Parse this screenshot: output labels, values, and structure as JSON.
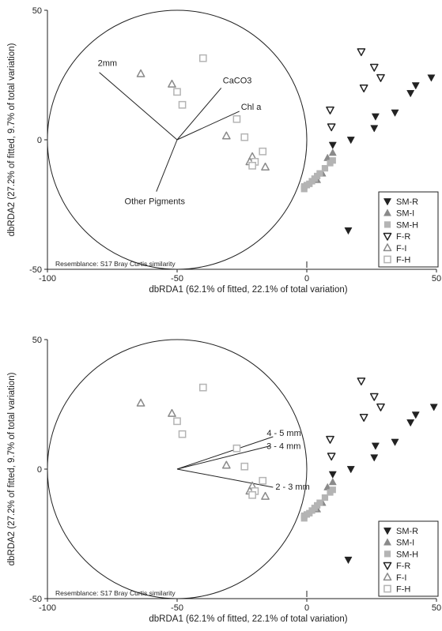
{
  "chart_data": [
    {
      "type": "scatter",
      "title": "",
      "xlabel": "dbRDA1 (62.1% of fitted, 22.1% of total variation)",
      "ylabel": "dbRDA2 (27.2% of fitted, 9.7% of total variation)",
      "xlim": [
        -100,
        50
      ],
      "ylim": [
        -50,
        50
      ],
      "xticks": [
        -100,
        -50,
        0,
        50
      ],
      "yticks": [
        -50,
        0,
        50
      ],
      "grid": false,
      "legend_position": "bottom-right",
      "annotation": "Resemblance: S17 Bray Curtis similarity",
      "circle": {
        "center": [
          -50,
          0
        ],
        "radius": 50
      },
      "vectors": [
        {
          "label": "2mm",
          "end": [
            -80,
            26
          ]
        },
        {
          "label": "CaCO3",
          "end": [
            -33,
            20
          ]
        },
        {
          "label": "Chl a",
          "end": [
            -26,
            11
          ]
        },
        {
          "label": "Other Pigments",
          "end": [
            -58,
            -20
          ]
        }
      ],
      "series": [
        {
          "name": "SM-R",
          "marker": "triangle-down-filled",
          "points": [
            [
              48,
              24
            ],
            [
              42,
              21
            ],
            [
              40,
              18
            ],
            [
              34,
              10.5
            ],
            [
              26.5,
              9
            ],
            [
              26,
              4.5
            ],
            [
              17,
              0
            ],
            [
              10,
              -2
            ],
            [
              16,
              -35
            ]
          ]
        },
        {
          "name": "SM-I",
          "marker": "triangle-up-filled",
          "points": [
            [
              10,
              -5
            ],
            [
              8,
              -7
            ],
            [
              6,
              -13
            ],
            [
              4,
              -15.5
            ]
          ]
        },
        {
          "name": "SM-H",
          "marker": "square-filled",
          "points": [
            [
              10,
              -8
            ],
            [
              9,
              -9
            ],
            [
              7,
              -11
            ],
            [
              5,
              -13
            ],
            [
              4,
              -14
            ],
            [
              3,
              -15
            ],
            [
              2,
              -16
            ],
            [
              1,
              -17
            ],
            [
              0,
              -17.5
            ],
            [
              -1,
              -18
            ],
            [
              -1,
              -19
            ]
          ]
        },
        {
          "name": "F-R",
          "marker": "triangle-down-open",
          "points": [
            [
              21,
              34
            ],
            [
              26,
              28
            ],
            [
              28.5,
              24
            ],
            [
              22,
              20
            ],
            [
              9,
              11.5
            ],
            [
              9.5,
              5
            ]
          ]
        },
        {
          "name": "F-I",
          "marker": "triangle-up-open",
          "points": [
            [
              -64,
              25.5
            ],
            [
              -52,
              21.5
            ],
            [
              -31,
              1.5
            ],
            [
              -21,
              -6.5
            ],
            [
              -22,
              -8.5
            ],
            [
              -16,
              -10.5
            ]
          ]
        },
        {
          "name": "F-H",
          "marker": "square-open",
          "points": [
            [
              -40,
              31.5
            ],
            [
              -50,
              18.5
            ],
            [
              -48,
              13.5
            ],
            [
              -27,
              8
            ],
            [
              -24,
              1
            ],
            [
              -17,
              -4.5
            ],
            [
              -20,
              -8.5
            ],
            [
              -21,
              -10
            ]
          ]
        }
      ]
    },
    {
      "type": "scatter",
      "title": "",
      "xlabel": "dbRDA1 (62.1% of fitted, 22.1% of total variation)",
      "ylabel": "dbRDA2 (27.2% of fitted, 9.7% of total variation)",
      "xlim": [
        -100,
        50
      ],
      "ylim": [
        -50,
        50
      ],
      "xticks": [
        -100,
        -50,
        0,
        50
      ],
      "yticks": [
        -50,
        0,
        50
      ],
      "grid": false,
      "legend_position": "bottom-right",
      "annotation": "Resemblance: S17 Bray Curtis similarity",
      "circle": {
        "center": [
          -50,
          0
        ],
        "radius": 50
      },
      "vectors": [
        {
          "label": "4 - 5 mm",
          "end": [
            -13,
            12.5
          ]
        },
        {
          "label": "3 - 4 mm",
          "end": [
            -14,
            9
          ]
        },
        {
          "label": "2 - 3 mm",
          "end": [
            -13,
            -7
          ]
        }
      ],
      "series": [
        {
          "name": "SM-R",
          "marker": "triangle-down-filled",
          "points": [
            [
              49,
              24
            ],
            [
              42,
              21
            ],
            [
              40,
              18
            ],
            [
              34,
              10.5
            ],
            [
              26.5,
              9
            ],
            [
              26,
              4.5
            ],
            [
              17,
              0
            ],
            [
              10,
              -2
            ],
            [
              16,
              -35
            ]
          ]
        },
        {
          "name": "SM-I",
          "marker": "triangle-up-filled",
          "points": [
            [
              10,
              -5
            ],
            [
              8,
              -7
            ],
            [
              6,
              -13
            ],
            [
              4,
              -15.5
            ]
          ]
        },
        {
          "name": "SM-H",
          "marker": "square-filled",
          "points": [
            [
              10,
              -8
            ],
            [
              9,
              -9
            ],
            [
              7,
              -11
            ],
            [
              5,
              -13
            ],
            [
              4,
              -14
            ],
            [
              3,
              -15
            ],
            [
              2,
              -16
            ],
            [
              1,
              -17
            ],
            [
              0,
              -17.5
            ],
            [
              -1,
              -18
            ],
            [
              -1,
              -19
            ]
          ]
        },
        {
          "name": "F-R",
          "marker": "triangle-down-open",
          "points": [
            [
              21,
              34
            ],
            [
              26,
              28
            ],
            [
              28.5,
              24
            ],
            [
              22,
              20
            ],
            [
              9,
              11.5
            ],
            [
              9.5,
              5
            ]
          ]
        },
        {
          "name": "F-I",
          "marker": "triangle-up-open",
          "points": [
            [
              -64,
              25.5
            ],
            [
              -52,
              21.5
            ],
            [
              -31,
              1.5
            ],
            [
              -21,
              -6.5
            ],
            [
              -22,
              -8.5
            ],
            [
              -16,
              -10.5
            ]
          ]
        },
        {
          "name": "F-H",
          "marker": "square-open",
          "points": [
            [
              -40,
              31.5
            ],
            [
              -50,
              18.5
            ],
            [
              -48,
              13.5
            ],
            [
              -27,
              8
            ],
            [
              -24,
              1
            ],
            [
              -17,
              -4.5
            ],
            [
              -20,
              -8.5
            ],
            [
              -21,
              -10
            ]
          ]
        }
      ]
    }
  ],
  "colors": {
    "dark": "#222222",
    "grey": "#8a8a8a",
    "light": "#b4b4b4"
  }
}
